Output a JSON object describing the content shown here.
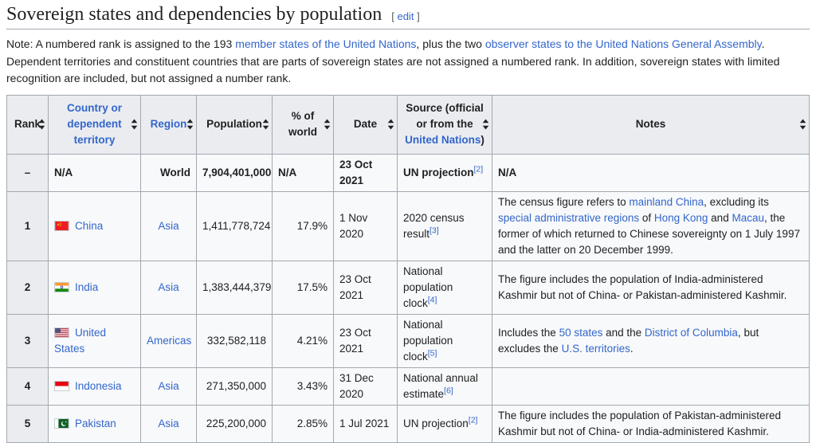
{
  "page": {
    "title": "Sovereign states and dependencies by population",
    "edit": {
      "open_bracket": "[",
      "label": "edit",
      "close_bracket": "]"
    },
    "note_segments": [
      {
        "t": "Note: A numbered rank is assigned to the 193 "
      },
      {
        "t": "member states of the United Nations",
        "link": true
      },
      {
        "t": ", plus the two "
      },
      {
        "t": "observer states to the United Nations General Assembly",
        "link": true
      },
      {
        "t": ". Dependent territories and constituent countries that are parts of sovereign states are not assigned a numbered rank. In addition, sovereign states with limited recognition are included, but not assigned a number rank."
      }
    ]
  },
  "colors": {
    "link_blue": "#3366cc",
    "header_bg": "#eaecf0",
    "table_bg": "#f8f9fa",
    "border": "#a2a9b1"
  },
  "icons": {
    "sort": "up-down-triangle-sort-icon",
    "flags": [
      "china-flag",
      "india-flag",
      "united-states-flag",
      "indonesia-flag",
      "pakistan-flag"
    ]
  },
  "table": {
    "headers": [
      {
        "segments": [
          {
            "t": "Rank"
          }
        ]
      },
      {
        "segments": [
          {
            "t": "Country or dependent territory",
            "link": true
          }
        ]
      },
      {
        "segments": [
          {
            "t": "Region",
            "link": true
          }
        ]
      },
      {
        "segments": [
          {
            "t": "Population"
          }
        ]
      },
      {
        "segments": [
          {
            "t": "% of world"
          }
        ]
      },
      {
        "segments": [
          {
            "t": "Date"
          }
        ]
      },
      {
        "segments": [
          {
            "t": "Source (official or from the "
          },
          {
            "t": "United Nations",
            "link": true
          },
          {
            "t": ")"
          }
        ]
      },
      {
        "segments": [
          {
            "t": "Notes"
          }
        ]
      }
    ],
    "rows": [
      {
        "rank": "–",
        "bold": true,
        "country": {
          "name": "N/A",
          "link": false
        },
        "region": {
          "name": "World",
          "link": false
        },
        "population": "7,904,401,000",
        "pct": "N/A",
        "date": "23 Oct 2021",
        "source": [
          {
            "t": "UN projection"
          },
          {
            "t": "[2]",
            "sup": true,
            "link": true
          }
        ],
        "notes": [
          {
            "t": "N/A"
          }
        ]
      },
      {
        "rank": "1",
        "bold": false,
        "country": {
          "name": "China",
          "link": true,
          "flag": "china"
        },
        "region": {
          "name": "Asia",
          "link": true
        },
        "population": "1,411,778,724",
        "pct": "17.9%",
        "date": "1 Nov 2020",
        "source": [
          {
            "t": "2020 census result"
          },
          {
            "t": "[3]",
            "sup": true,
            "link": true
          }
        ],
        "notes": [
          {
            "t": "The census figure refers to "
          },
          {
            "t": "mainland China",
            "link": true
          },
          {
            "t": ", excluding its "
          },
          {
            "t": "special administrative regions",
            "link": true
          },
          {
            "t": " of "
          },
          {
            "t": "Hong Kong",
            "link": true
          },
          {
            "t": " and "
          },
          {
            "t": "Macau",
            "link": true
          },
          {
            "t": ", the former of which returned to Chinese sovereignty on 1 July 1997 and the latter on 20 December 1999."
          }
        ]
      },
      {
        "rank": "2",
        "bold": false,
        "country": {
          "name": "India",
          "link": true,
          "flag": "india"
        },
        "region": {
          "name": "Asia",
          "link": true
        },
        "population": "1,383,444,379",
        "pct": "17.5%",
        "date": "23 Oct 2021",
        "source": [
          {
            "t": "National population clock"
          },
          {
            "t": "[4]",
            "sup": true,
            "link": true
          }
        ],
        "notes": [
          {
            "t": "The figure includes the population of India-administered Kashmir but not of China- or Pakistan-administered Kashmir."
          }
        ]
      },
      {
        "rank": "3",
        "bold": false,
        "country": {
          "name": "United States",
          "link": true,
          "flag": "us"
        },
        "region": {
          "name": "Americas",
          "link": true
        },
        "population": "332,582,118",
        "pct": "4.21%",
        "date": "23 Oct 2021",
        "source": [
          {
            "t": "National population clock"
          },
          {
            "t": "[5]",
            "sup": true,
            "link": true
          }
        ],
        "notes": [
          {
            "t": "Includes the "
          },
          {
            "t": "50 states",
            "link": true
          },
          {
            "t": " and the "
          },
          {
            "t": "District of Columbia",
            "link": true
          },
          {
            "t": ", but excludes the "
          },
          {
            "t": "U.S. territories",
            "link": true
          },
          {
            "t": "."
          }
        ]
      },
      {
        "rank": "4",
        "bold": false,
        "country": {
          "name": "Indonesia",
          "link": true,
          "flag": "indonesia"
        },
        "region": {
          "name": "Asia",
          "link": true
        },
        "population": "271,350,000",
        "pct": "3.43%",
        "date": "31 Dec 2020",
        "source": [
          {
            "t": "National annual estimate"
          },
          {
            "t": "[6]",
            "sup": true,
            "link": true
          }
        ],
        "notes": []
      },
      {
        "rank": "5",
        "bold": false,
        "country": {
          "name": "Pakistan",
          "link": true,
          "flag": "pakistan"
        },
        "region": {
          "name": "Asia",
          "link": true
        },
        "population": "225,200,000",
        "pct": "2.85%",
        "date": "1 Jul 2021",
        "source": [
          {
            "t": "UN projection"
          },
          {
            "t": "[2]",
            "sup": true,
            "link": true
          }
        ],
        "notes": [
          {
            "t": "The figure includes the population of Pakistan-administered Kashmir but not of China- or India-administered Kashmir."
          }
        ]
      }
    ]
  }
}
